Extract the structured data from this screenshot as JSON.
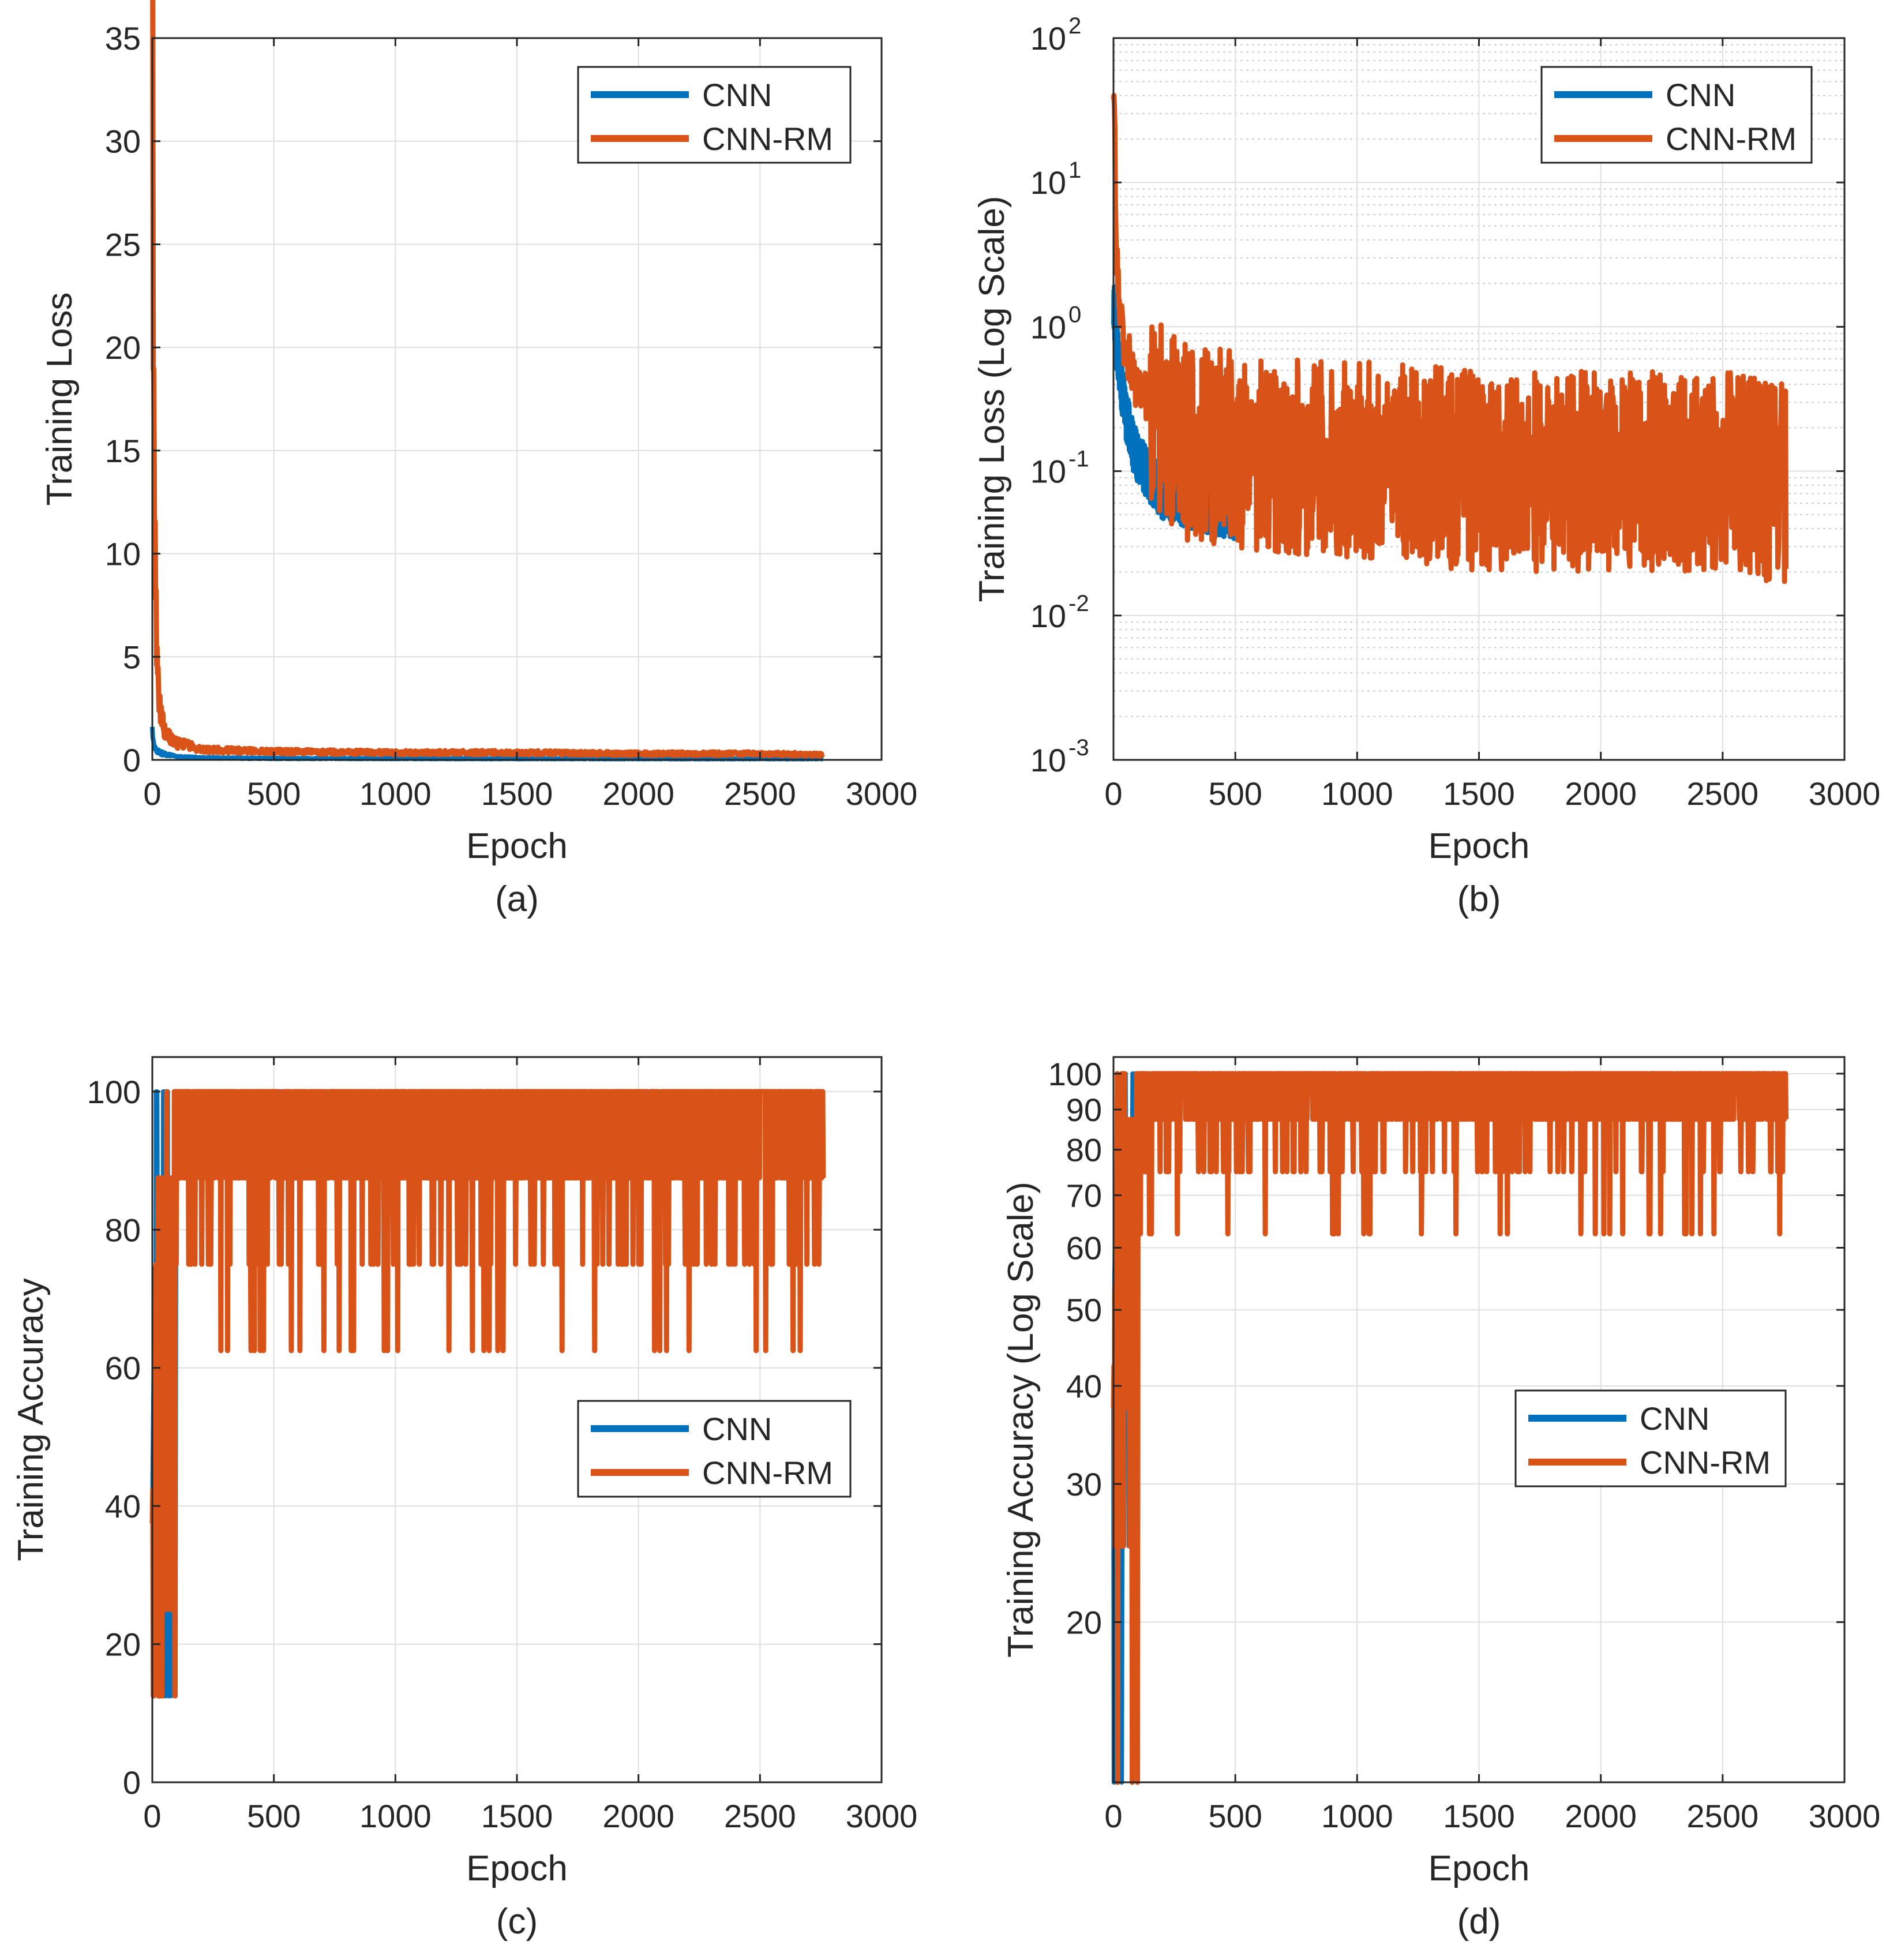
{
  "figure": {
    "panels": [
      "(a)",
      "(b)",
      "(c)",
      "(d)"
    ]
  },
  "colors": {
    "cnn": "#0072BD",
    "cnn_rm": "#D95319",
    "axis": "#262626",
    "grid": "#dfdfdf",
    "minor_grid": "#cfcfcf"
  },
  "chart_data": [
    {
      "id": "a",
      "type": "line",
      "caption": "(a)",
      "xlabel": "Epoch",
      "ylabel": "Training Loss",
      "xlim": [
        0,
        3000
      ],
      "ylim": [
        0,
        35
      ],
      "yscale": "linear",
      "xticks": [
        0,
        500,
        1000,
        1500,
        2000,
        2500,
        3000
      ],
      "yticks": [
        0,
        5,
        10,
        15,
        20,
        25,
        30,
        35
      ],
      "ytick_labels": [
        "0",
        "5",
        "10",
        "15",
        "20",
        "25",
        "30",
        "35"
      ],
      "legend": {
        "position": "top-right",
        "entries": [
          "CNN",
          "CNN-RM"
        ]
      },
      "series": [
        {
          "name": "CNN",
          "points": [
            [
              0,
              1.3
            ],
            [
              5,
              0.9
            ],
            [
              10,
              0.6
            ],
            [
              30,
              0.35
            ],
            [
              60,
              0.25
            ],
            [
              100,
              0.15
            ],
            [
              200,
              0.1
            ],
            [
              500,
              0.07
            ],
            [
              1000,
              0.06
            ],
            [
              2000,
              0.05
            ],
            [
              2760,
              0.05
            ]
          ]
        },
        {
          "name": "CNN-RM",
          "points": [
            [
              0,
              34
            ],
            [
              5,
              20
            ],
            [
              10,
              10.5
            ],
            [
              20,
              5
            ],
            [
              30,
              2.5
            ],
            [
              50,
              1.4
            ],
            [
              80,
              1.0
            ],
            [
              100,
              0.8
            ],
            [
              150,
              0.7
            ],
            [
              200,
              0.5
            ],
            [
              500,
              0.4
            ],
            [
              1000,
              0.35
            ],
            [
              1500,
              0.35
            ],
            [
              2000,
              0.3
            ],
            [
              2500,
              0.3
            ],
            [
              2760,
              0.25
            ]
          ]
        }
      ]
    },
    {
      "id": "b",
      "type": "line",
      "caption": "(b)",
      "xlabel": "Epoch",
      "ylabel": "Training Loss (Log Scale)",
      "xlim": [
        0,
        3000
      ],
      "ylim": [
        0.001,
        100
      ],
      "yscale": "log",
      "xticks": [
        0,
        500,
        1000,
        1500,
        2000,
        2500,
        3000
      ],
      "yticks": [
        0.001,
        0.01,
        0.1,
        1,
        10,
        100
      ],
      "ytick_labels": [
        [
          "10",
          "-3"
        ],
        [
          "10",
          "-2"
        ],
        [
          "10",
          "-1"
        ],
        [
          "10",
          "0"
        ],
        [
          "10",
          "1"
        ],
        [
          "10",
          "2"
        ]
      ],
      "legend": {
        "position": "top-right",
        "entries": [
          "CNN",
          "CNN-RM"
        ]
      },
      "series": [
        {
          "name": "CNN",
          "points": [
            [
              0,
              1.5
            ],
            [
              10,
              0.8
            ],
            [
              30,
              0.4
            ],
            [
              50,
              0.25
            ],
            [
              80,
              0.15
            ],
            [
              100,
              0.12
            ],
            [
              150,
              0.09
            ],
            [
              200,
              0.07
            ],
            [
              300,
              0.06
            ],
            [
              500,
              0.05
            ]
          ]
        },
        {
          "name": "CNN-RM",
          "points": [
            [
              0,
              35
            ],
            [
              10,
              3
            ],
            [
              30,
              1.0
            ],
            [
              50,
              0.7
            ],
            [
              100,
              0.35
            ],
            [
              300,
              0.15
            ],
            [
              1000,
              0.12
            ],
            [
              1500,
              0.1
            ],
            [
              2000,
              0.1
            ],
            [
              2500,
              0.1
            ],
            [
              2760,
              0.08
            ]
          ]
        }
      ]
    },
    {
      "id": "c",
      "type": "line",
      "caption": "(c)",
      "xlabel": "Epoch",
      "ylabel": "Training Accuracy",
      "xlim": [
        0,
        3000
      ],
      "ylim": [
        0,
        105
      ],
      "yscale": "linear",
      "xticks": [
        0,
        500,
        1000,
        1500,
        2000,
        2500,
        3000
      ],
      "yticks": [
        0,
        20,
        40,
        60,
        80,
        100
      ],
      "ytick_labels": [
        "0",
        "20",
        "40",
        "60",
        "80",
        "100"
      ],
      "legend": {
        "position": "center-right",
        "entries": [
          "CNN",
          "CNN-RM"
        ]
      },
      "series": [
        {
          "name": "CNN",
          "points": [
            [
              0,
              12.5
            ],
            [
              10,
              50
            ],
            [
              20,
              87.5
            ],
            [
              40,
              100
            ],
            [
              2760,
              100
            ]
          ]
        },
        {
          "name": "CNN-RM",
          "points": [
            [
              0,
              12.5
            ],
            [
              20,
              62.5
            ],
            [
              40,
              87.5
            ],
            [
              60,
              100
            ],
            [
              500,
              87.5
            ],
            [
              1000,
              87.5
            ],
            [
              2000,
              87.5
            ],
            [
              2760,
              87.5
            ]
          ]
        }
      ]
    },
    {
      "id": "d",
      "type": "line",
      "caption": "(d)",
      "xlabel": "Epoch",
      "ylabel": "Training Accuracy (Log Scale)",
      "xlim": [
        0,
        3000
      ],
      "ylim": [
        12.5,
        105
      ],
      "yscale": "log",
      "xticks": [
        0,
        500,
        1000,
        1500,
        2000,
        2500,
        3000
      ],
      "yticks": [
        20,
        30,
        40,
        50,
        60,
        70,
        80,
        90,
        100
      ],
      "ytick_labels": [
        "20",
        "30",
        "40",
        "50",
        "60",
        "70",
        "80",
        "90",
        "100"
      ],
      "legend": {
        "position": "center-right",
        "entries": [
          "CNN",
          "CNN-RM"
        ]
      },
      "series": [
        {
          "name": "CNN",
          "points": [
            [
              0,
              12.5
            ],
            [
              10,
              50
            ],
            [
              20,
              87.5
            ],
            [
              40,
              100
            ],
            [
              2760,
              100
            ]
          ]
        },
        {
          "name": "CNN-RM",
          "points": [
            [
              0,
              12.5
            ],
            [
              20,
              62.5
            ],
            [
              40,
              87.5
            ],
            [
              60,
              100
            ],
            [
              500,
              87.5
            ],
            [
              1000,
              87.5
            ],
            [
              2000,
              87.5
            ],
            [
              2760,
              87.5
            ]
          ]
        }
      ]
    }
  ]
}
